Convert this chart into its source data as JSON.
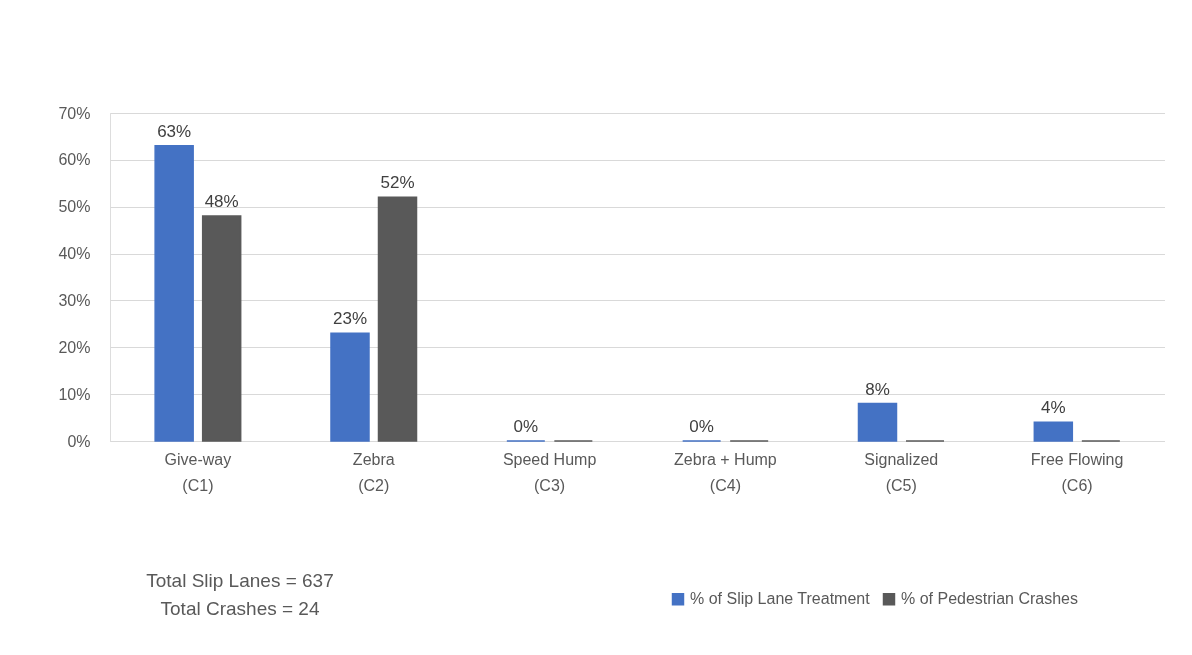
{
  "chart_data": {
    "type": "bar",
    "categories": [
      "Give-way\n(C1)",
      "Zebra\n(C2)",
      "Speed Hump\n(C3)",
      "Zebra + Hump\n(C4)",
      "Signalized\n(C5)",
      "Free Flowing\n(C6)"
    ],
    "series": [
      {
        "name": "% of Slip Lane Treatment",
        "color": "#4472c4",
        "values": [
          63,
          23,
          0,
          0,
          8,
          4
        ],
        "value_labels": [
          "63%",
          "23%",
          "0%",
          "0%",
          "8%",
          "4%"
        ]
      },
      {
        "name": "% of Pedestrian Crashes",
        "color": "#595959",
        "values": [
          48,
          52,
          0,
          0,
          0,
          0
        ],
        "value_labels": [
          "48%",
          "52%",
          null,
          null,
          null,
          null
        ]
      }
    ],
    "ylim": [
      0,
      70
    ],
    "yticks": [
      {
        "value": 0,
        "label": "0%"
      },
      {
        "value": 10,
        "label": "10%"
      },
      {
        "value": 20,
        "label": "20%"
      },
      {
        "value": 30,
        "label": "30%"
      },
      {
        "value": 40,
        "label": "40%"
      },
      {
        "value": 50,
        "label": "50%"
      },
      {
        "value": 60,
        "label": "60%"
      },
      {
        "value": 70,
        "label": "70%"
      }
    ],
    "grid": "y",
    "legend": "bottom right",
    "annotations": [
      "Total Slip Lanes = 637",
      "Total Crashes = 24"
    ]
  }
}
